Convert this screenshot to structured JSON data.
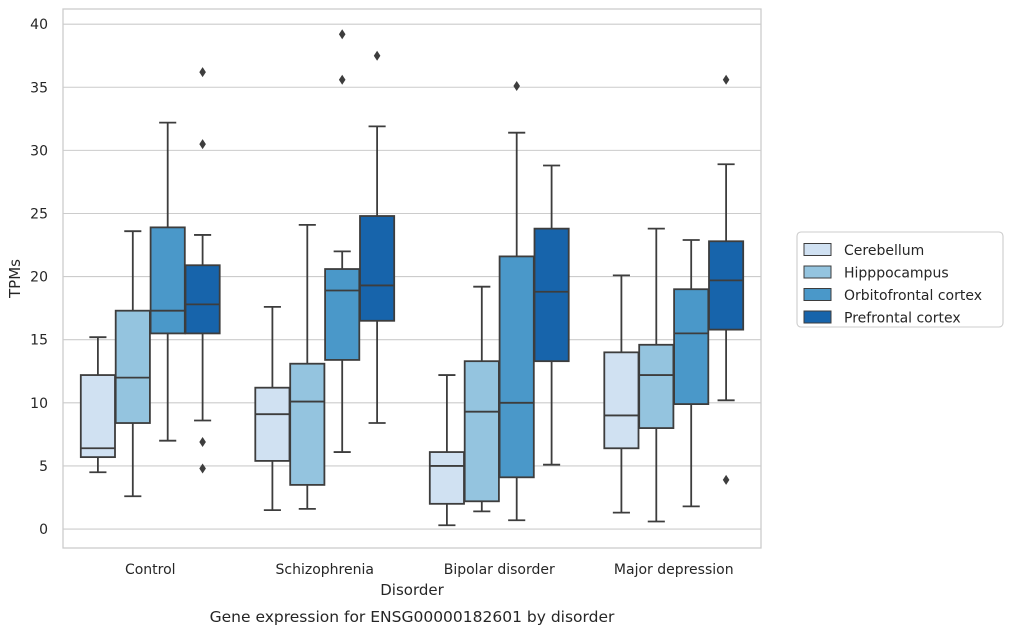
{
  "chart_data": {
    "type": "boxplot",
    "title": "Gene expression for ENSG00000182601 by disorder",
    "xlabel": "Disorder",
    "ylabel": "TPMs",
    "ylim": [
      -1.5,
      41.2
    ],
    "yticks": [
      0,
      5,
      10,
      15,
      20,
      25,
      30,
      35,
      40
    ],
    "grid": "horizontal",
    "legend_position": "right",
    "categories": [
      "Control",
      "Schizophrenia",
      "Bipolar disorder",
      "Major depression"
    ],
    "series": [
      {
        "name": "Cerebellum",
        "color": "#d0e1f2",
        "boxes": [
          {
            "whislo": 4.5,
            "q1": 5.7,
            "med": 6.4,
            "q3": 12.2,
            "whishi": 15.2,
            "fliers": []
          },
          {
            "whislo": 1.5,
            "q1": 5.4,
            "med": 9.1,
            "q3": 11.2,
            "whishi": 17.6,
            "fliers": []
          },
          {
            "whislo": 0.3,
            "q1": 2.0,
            "med": 5.0,
            "q3": 6.1,
            "whishi": 12.2,
            "fliers": []
          },
          {
            "whislo": 1.3,
            "q1": 6.4,
            "med": 9.0,
            "q3": 14.0,
            "whishi": 20.1,
            "fliers": []
          }
        ]
      },
      {
        "name": "Hipppocampus",
        "color": "#94c4df",
        "boxes": [
          {
            "whislo": 2.6,
            "q1": 8.4,
            "med": 12.0,
            "q3": 17.3,
            "whishi": 23.6,
            "fliers": []
          },
          {
            "whislo": 1.6,
            "q1": 3.5,
            "med": 10.1,
            "q3": 13.1,
            "whishi": 24.1,
            "fliers": []
          },
          {
            "whislo": 1.4,
            "q1": 2.2,
            "med": 9.3,
            "q3": 13.3,
            "whishi": 19.2,
            "fliers": []
          },
          {
            "whislo": 0.6,
            "q1": 8.0,
            "med": 12.2,
            "q3": 14.6,
            "whishi": 23.8,
            "fliers": []
          }
        ]
      },
      {
        "name": "Orbitofrontal cortex",
        "color": "#4a98c9",
        "boxes": [
          {
            "whislo": 7.0,
            "q1": 15.5,
            "med": 17.3,
            "q3": 23.9,
            "whishi": 32.2,
            "fliers": []
          },
          {
            "whislo": 6.1,
            "q1": 13.4,
            "med": 18.9,
            "q3": 20.6,
            "whishi": 22.0,
            "fliers": [
              35.6,
              39.2
            ]
          },
          {
            "whislo": 0.7,
            "q1": 4.1,
            "med": 10.0,
            "q3": 21.6,
            "whishi": 31.4,
            "fliers": [
              35.1
            ]
          },
          {
            "whislo": 1.8,
            "q1": 9.9,
            "med": 15.5,
            "q3": 19.0,
            "whishi": 22.9,
            "fliers": []
          }
        ]
      },
      {
        "name": "Prefrontal cortex",
        "color": "#1764ab",
        "boxes": [
          {
            "whislo": 8.6,
            "q1": 15.5,
            "med": 17.8,
            "q3": 20.9,
            "whishi": 23.3,
            "fliers": [
              4.8,
              6.9,
              30.5,
              36.2
            ]
          },
          {
            "whislo": 8.4,
            "q1": 16.5,
            "med": 19.3,
            "q3": 24.8,
            "whishi": 31.9,
            "fliers": [
              37.5
            ]
          },
          {
            "whislo": 5.1,
            "q1": 13.3,
            "med": 18.8,
            "q3": 23.8,
            "whishi": 28.8,
            "fliers": []
          },
          {
            "whislo": 10.2,
            "q1": 15.8,
            "med": 19.7,
            "q3": 22.8,
            "whishi": 28.9,
            "fliers": [
              3.9,
              35.6
            ]
          }
        ]
      }
    ]
  }
}
